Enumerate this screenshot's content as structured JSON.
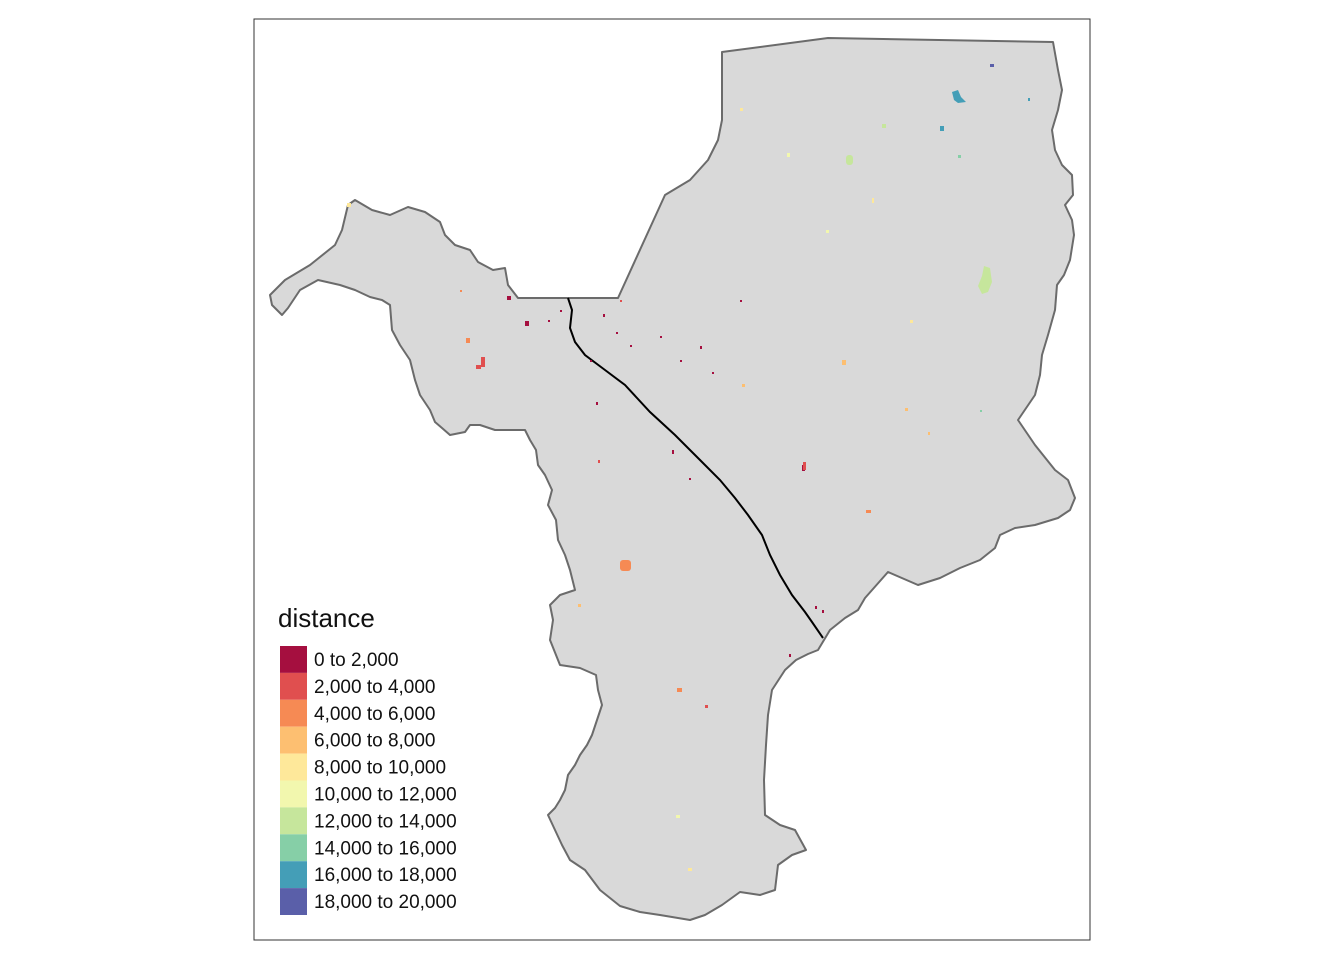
{
  "legend": {
    "title": "distance",
    "classes": [
      {
        "label": "0 to 2,000",
        "color": "#a50f3f"
      },
      {
        "label": "2,000 to 4,000",
        "color": "#e04f4f"
      },
      {
        "label": "4,000 to 6,000",
        "color": "#f68a54"
      },
      {
        "label": "6,000 to 8,000",
        "color": "#fdbf71"
      },
      {
        "label": "8,000 to 10,000",
        "color": "#fee89a"
      },
      {
        "label": "10,000 to 12,000",
        "color": "#f2f7ae"
      },
      {
        "label": "12,000 to 14,000",
        "color": "#c6e69c"
      },
      {
        "label": "14,000 to 16,000",
        "color": "#86cfa7"
      },
      {
        "label": "16,000 to 18,000",
        "color": "#449eb7"
      },
      {
        "label": "18,000 to 20,000",
        "color": "#5a5fa9"
      }
    ]
  },
  "map": {
    "region_fill": "#d9d9d9",
    "region_border": "#6b6b6b",
    "road_color": "#000000",
    "frame_color": "#333333"
  }
}
